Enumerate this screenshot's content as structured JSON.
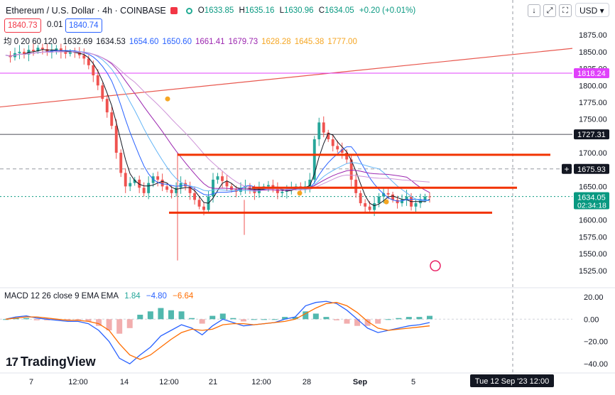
{
  "header": {
    "symbol": "Ethereum / U.S. Dollar · 4h · COINBASE",
    "open_label": "O",
    "open": "1633.85",
    "high_label": "H",
    "high": "1635.16",
    "low_label": "L",
    "low": "1630.96",
    "close_label": "C",
    "close": "1634.05",
    "change": "+0.20 (+0.01%)"
  },
  "sell_price": "1840.73",
  "spread": "0.01",
  "buy_price": "1840.74",
  "ma_legend": {
    "prefix": "均 0 20 60 120",
    "values": [
      "1632.69",
      "1634.53",
      "1654.60",
      "1650.60",
      "1661.41",
      "1679.73",
      "1628.28",
      "1645.38",
      "1777.00"
    ],
    "colors": [
      "#131722",
      "#131722",
      "#2962ff",
      "#2962ff",
      "#9c27b0",
      "#9c27b0",
      "#f5a623",
      "#f5a623",
      "#f5a623"
    ]
  },
  "macd_legend": {
    "label": "MACD 12 26 close 9 EMA EMA",
    "hist": "1.84",
    "macd": "−4.80",
    "signal": "−6.64"
  },
  "toolbar": {
    "down_icon": "↓",
    "expand_icon": "⤢",
    "fullscreen_icon": "⛶",
    "currency": "USD"
  },
  "brand": "TradingView",
  "colors": {
    "up": "#26a69a",
    "down": "#ef5350",
    "support_lines": "#f23300",
    "trendline": "#e8584f",
    "magenta_line": "#e040fb",
    "macd": "#2962ff",
    "signal": "#ff6d00"
  },
  "chart_data": {
    "type": "candlestick",
    "title": "Ethereum / U.S. Dollar · 4h · COINBASE",
    "ylim": [
      1510,
      1890
    ],
    "yticks": [
      1525,
      1550,
      1575,
      1600,
      1625,
      1650,
      1675,
      1700,
      1725,
      1750,
      1775,
      1800,
      1825,
      1850,
      1875
    ],
    "x_labels": [
      "7",
      "12:00",
      "14",
      "12:00",
      "21",
      "12:00",
      "28",
      "Sep",
      "5"
    ],
    "price_tags": [
      {
        "value": "1818.24",
        "color": "#e040fb"
      },
      {
        "value": "1727.31",
        "color": "#131722"
      },
      {
        "value": "1675.93",
        "color": "#131722"
      },
      {
        "value": "1634.05",
        "color": "#089981",
        "sub": "02:34:18"
      }
    ],
    "horizontal_levels": [
      {
        "name": "resistance-1",
        "value": 1697
      },
      {
        "name": "resistance-2",
        "value": 1648
      },
      {
        "name": "support-1",
        "value": 1611
      },
      {
        "name": "magenta-level",
        "value": 1818.24
      },
      {
        "name": "grey-level",
        "value": 1727.31
      },
      {
        "name": "dashed-level",
        "value": 1675.93
      }
    ],
    "crosshair_time": "Tue 12 Sep '23   12:00",
    "price_path": [
      1845,
      1842,
      1848,
      1850,
      1846,
      1853,
      1851,
      1856,
      1854,
      1849,
      1852,
      1855,
      1850,
      1847,
      1850,
      1849,
      1845,
      1840,
      1830,
      1815,
      1800,
      1780,
      1760,
      1740,
      1700,
      1670,
      1650,
      1655,
      1660,
      1648,
      1640,
      1655,
      1665,
      1660,
      1650,
      1645,
      1640,
      1648,
      1655,
      1650,
      1640,
      1630,
      1620,
      1615,
      1635,
      1660,
      1665,
      1658,
      1650,
      1645,
      1642,
      1648,
      1650,
      1645,
      1640,
      1648,
      1650,
      1652,
      1646,
      1640,
      1642,
      1645,
      1648,
      1650,
      1645,
      1650,
      1660,
      1720,
      1745,
      1730,
      1720,
      1710,
      1705,
      1700,
      1690,
      1660,
      1640,
      1625,
      1620,
      1615,
      1625,
      1635,
      1640,
      1638,
      1630,
      1625,
      1630,
      1635,
      1620,
      1625,
      1630,
      1635,
      1634
    ],
    "macd": {
      "range": [
        -45,
        25
      ],
      "yticks": [
        20,
        0,
        -20,
        -40
      ],
      "macd_line": [
        0,
        2,
        3,
        1,
        0,
        -1,
        -2,
        -2,
        -4,
        -10,
        -20,
        -35,
        -40,
        -32,
        -25,
        -15,
        -10,
        -5,
        -8,
        -14,
        -6,
        0,
        -3,
        -6,
        -5,
        -4,
        -3,
        0,
        2,
        12,
        15,
        16,
        14,
        8,
        0,
        -8,
        -12,
        -10,
        -8,
        -6,
        -5,
        -3
      ],
      "signal_line": [
        0,
        1,
        2,
        2,
        1,
        0,
        -1,
        -1,
        -2,
        -4,
        -10,
        -22,
        -32,
        -36,
        -32,
        -25,
        -18,
        -12,
        -9,
        -10,
        -9,
        -5,
        -4,
        -4,
        -5,
        -4,
        -3,
        -2,
        0,
        5,
        10,
        14,
        15,
        12,
        6,
        -2,
        -8,
        -10,
        -9,
        -8,
        -7,
        -6
      ]
    }
  }
}
